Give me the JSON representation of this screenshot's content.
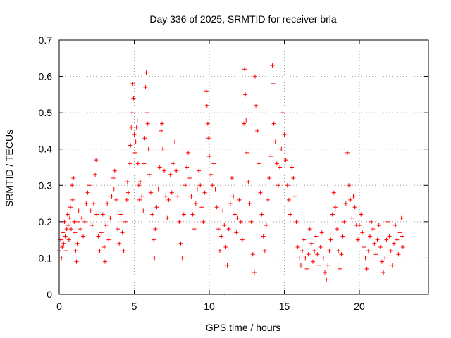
{
  "chart_data": {
    "type": "scatter",
    "title": "Day 336 of 2025, SRMTID for receiver brla",
    "xlabel": "GPS time / hours",
    "ylabel": "SRMTID / TECUs",
    "xlim": [
      0,
      24.6
    ],
    "ylim": [
      0,
      0.7
    ],
    "xticks": [
      0,
      5,
      10,
      15,
      20
    ],
    "xtick_labels": [
      "0",
      "5",
      "10",
      "15",
      "20"
    ],
    "yticks": [
      0,
      0.1,
      0.2,
      0.3,
      0.4,
      0.5,
      0.6,
      0.7
    ],
    "ytick_labels": [
      "0",
      "0.1",
      "0.2",
      "0.3",
      "0.4",
      "0.5",
      "0.6",
      "0.7"
    ],
    "grid": true,
    "marker": "plus",
    "series": [
      {
        "name": "SRMTID",
        "color": "#ff0000",
        "points": [
          [
            0.0,
            0.12
          ],
          [
            0.1,
            0.15
          ],
          [
            0.15,
            0.1
          ],
          [
            0.2,
            0.13
          ],
          [
            0.25,
            0.17
          ],
          [
            0.3,
            0.14
          ],
          [
            0.35,
            0.2
          ],
          [
            0.4,
            0.16
          ],
          [
            0.45,
            0.12
          ],
          [
            0.5,
            0.18
          ],
          [
            0.55,
            0.22
          ],
          [
            0.6,
            0.19
          ],
          [
            0.65,
            0.15
          ],
          [
            0.7,
            0.21
          ],
          [
            0.75,
            0.24
          ],
          [
            0.8,
            0.18
          ],
          [
            0.85,
            0.3
          ],
          [
            0.9,
            0.26
          ],
          [
            0.95,
            0.32
          ],
          [
            1.0,
            0.2
          ],
          [
            1.05,
            0.17
          ],
          [
            1.1,
            0.12
          ],
          [
            1.15,
            0.09
          ],
          [
            1.2,
            0.14
          ],
          [
            1.25,
            0.2
          ],
          [
            1.3,
            0.23
          ],
          [
            1.4,
            0.18
          ],
          [
            1.5,
            0.21
          ],
          [
            1.6,
            0.16
          ],
          [
            1.7,
            0.2
          ],
          [
            1.8,
            0.25
          ],
          [
            1.9,
            0.28
          ],
          [
            2.0,
            0.3
          ],
          [
            2.1,
            0.23
          ],
          [
            2.2,
            0.19
          ],
          [
            2.3,
            0.25
          ],
          [
            2.4,
            0.33
          ],
          [
            2.45,
            0.37
          ],
          [
            2.5,
            0.22
          ],
          [
            2.6,
            0.16
          ],
          [
            2.7,
            0.12
          ],
          [
            2.8,
            0.17
          ],
          [
            2.9,
            0.22
          ],
          [
            3.0,
            0.13
          ],
          [
            3.05,
            0.09
          ],
          [
            3.1,
            0.19
          ],
          [
            3.2,
            0.25
          ],
          [
            3.3,
            0.15
          ],
          [
            3.4,
            0.21
          ],
          [
            3.5,
            0.27
          ],
          [
            3.6,
            0.32
          ],
          [
            3.65,
            0.29
          ],
          [
            3.7,
            0.34
          ],
          [
            3.8,
            0.26
          ],
          [
            3.9,
            0.18
          ],
          [
            4.0,
            0.14
          ],
          [
            4.1,
            0.22
          ],
          [
            4.2,
            0.17
          ],
          [
            4.3,
            0.12
          ],
          [
            4.4,
            0.2
          ],
          [
            4.5,
            0.26
          ],
          [
            4.55,
            0.31
          ],
          [
            4.6,
            0.28
          ],
          [
            4.7,
            0.36
          ],
          [
            4.75,
            0.41
          ],
          [
            4.8,
            0.46
          ],
          [
            4.85,
            0.5
          ],
          [
            4.9,
            0.58
          ],
          [
            4.95,
            0.54
          ],
          [
            5.0,
            0.44
          ],
          [
            5.05,
            0.39
          ],
          [
            5.1,
            0.42
          ],
          [
            5.15,
            0.46
          ],
          [
            5.2,
            0.48
          ],
          [
            5.25,
            0.36
          ],
          [
            5.3,
            0.3
          ],
          [
            5.35,
            0.26
          ],
          [
            5.4,
            0.31
          ],
          [
            5.5,
            0.27
          ],
          [
            5.6,
            0.23
          ],
          [
            5.65,
            0.36
          ],
          [
            5.7,
            0.43
          ],
          [
            5.75,
            0.57
          ],
          [
            5.8,
            0.61
          ],
          [
            5.85,
            0.5
          ],
          [
            5.9,
            0.47
          ],
          [
            5.95,
            0.4
          ],
          [
            6.0,
            0.33
          ],
          [
            6.1,
            0.28
          ],
          [
            6.2,
            0.22
          ],
          [
            6.3,
            0.15
          ],
          [
            6.35,
            0.1
          ],
          [
            6.4,
            0.18
          ],
          [
            6.5,
            0.24
          ],
          [
            6.6,
            0.29
          ],
          [
            6.7,
            0.35
          ],
          [
            6.8,
            0.45
          ],
          [
            6.85,
            0.47
          ],
          [
            6.9,
            0.4
          ],
          [
            7.0,
            0.34
          ],
          [
            7.1,
            0.27
          ],
          [
            7.2,
            0.21
          ],
          [
            7.3,
            0.26
          ],
          [
            7.4,
            0.33
          ],
          [
            7.5,
            0.28
          ],
          [
            7.6,
            0.36
          ],
          [
            7.7,
            0.42
          ],
          [
            7.8,
            0.34
          ],
          [
            7.9,
            0.27
          ],
          [
            8.0,
            0.2
          ],
          [
            8.1,
            0.14
          ],
          [
            8.2,
            0.1
          ],
          [
            8.3,
            0.22
          ],
          [
            8.4,
            0.3
          ],
          [
            8.5,
            0.35
          ],
          [
            8.6,
            0.39
          ],
          [
            8.7,
            0.32
          ],
          [
            8.8,
            0.27
          ],
          [
            8.9,
            0.22
          ],
          [
            9.0,
            0.18
          ],
          [
            9.1,
            0.25
          ],
          [
            9.2,
            0.29
          ],
          [
            9.3,
            0.34
          ],
          [
            9.4,
            0.3
          ],
          [
            9.5,
            0.24
          ],
          [
            9.6,
            0.2
          ],
          [
            9.7,
            0.28
          ],
          [
            9.8,
            0.56
          ],
          [
            9.85,
            0.52
          ],
          [
            9.9,
            0.47
          ],
          [
            9.95,
            0.43
          ],
          [
            10.0,
            0.38
          ],
          [
            10.1,
            0.33
          ],
          [
            10.2,
            0.3
          ],
          [
            10.3,
            0.36
          ],
          [
            10.4,
            0.29
          ],
          [
            10.5,
            0.24
          ],
          [
            10.6,
            0.18
          ],
          [
            10.7,
            0.12
          ],
          [
            10.8,
            0.16
          ],
          [
            10.9,
            0.23
          ],
          [
            11.0,
            0.19
          ],
          [
            11.05,
            0.0
          ],
          [
            11.1,
            0.13
          ],
          [
            11.2,
            0.08
          ],
          [
            11.3,
            0.18
          ],
          [
            11.4,
            0.25
          ],
          [
            11.5,
            0.32
          ],
          [
            11.6,
            0.27
          ],
          [
            11.7,
            0.22
          ],
          [
            11.8,
            0.17
          ],
          [
            11.9,
            0.21
          ],
          [
            12.0,
            0.26
          ],
          [
            12.1,
            0.2
          ],
          [
            12.2,
            0.15
          ],
          [
            12.3,
            0.47
          ],
          [
            12.35,
            0.62
          ],
          [
            12.4,
            0.55
          ],
          [
            12.45,
            0.48
          ],
          [
            12.5,
            0.39
          ],
          [
            12.6,
            0.31
          ],
          [
            12.7,
            0.25
          ],
          [
            12.8,
            0.2
          ],
          [
            12.9,
            0.11
          ],
          [
            13.0,
            0.06
          ],
          [
            13.05,
            0.6
          ],
          [
            13.1,
            0.52
          ],
          [
            13.2,
            0.45
          ],
          [
            13.3,
            0.36
          ],
          [
            13.4,
            0.28
          ],
          [
            13.5,
            0.22
          ],
          [
            13.6,
            0.16
          ],
          [
            13.7,
            0.12
          ],
          [
            13.8,
            0.19
          ],
          [
            13.9,
            0.26
          ],
          [
            14.0,
            0.32
          ],
          [
            14.1,
            0.38
          ],
          [
            14.2,
            0.63
          ],
          [
            14.25,
            0.58
          ],
          [
            14.3,
            0.47
          ],
          [
            14.4,
            0.42
          ],
          [
            14.5,
            0.36
          ],
          [
            14.6,
            0.3
          ],
          [
            14.7,
            0.35
          ],
          [
            14.8,
            0.4
          ],
          [
            14.9,
            0.5
          ],
          [
            15.0,
            0.44
          ],
          [
            15.1,
            0.37
          ],
          [
            15.2,
            0.3
          ],
          [
            15.3,
            0.26
          ],
          [
            15.4,
            0.22
          ],
          [
            15.5,
            0.35
          ],
          [
            15.6,
            0.32
          ],
          [
            15.7,
            0.27
          ],
          [
            15.8,
            0.2
          ],
          [
            15.9,
            0.13
          ],
          [
            16.0,
            0.1
          ],
          [
            16.1,
            0.08
          ],
          [
            16.2,
            0.12
          ],
          [
            16.3,
            0.15
          ],
          [
            16.4,
            0.1
          ],
          [
            16.5,
            0.07
          ],
          [
            16.6,
            0.11
          ],
          [
            16.7,
            0.18
          ],
          [
            16.8,
            0.14
          ],
          [
            16.9,
            0.09
          ],
          [
            17.0,
            0.12
          ],
          [
            17.1,
            0.16
          ],
          [
            17.2,
            0.11
          ],
          [
            17.3,
            0.08
          ],
          [
            17.4,
            0.13
          ],
          [
            17.5,
            0.17
          ],
          [
            17.6,
            0.1
          ],
          [
            17.7,
            0.06
          ],
          [
            17.8,
            0.04
          ],
          [
            17.9,
            0.08
          ],
          [
            18.0,
            0.12
          ],
          [
            18.1,
            0.15
          ],
          [
            18.2,
            0.22
          ],
          [
            18.3,
            0.28
          ],
          [
            18.4,
            0.24
          ],
          [
            18.5,
            0.18
          ],
          [
            18.6,
            0.12
          ],
          [
            18.7,
            0.07
          ],
          [
            18.8,
            0.11
          ],
          [
            18.9,
            0.16
          ],
          [
            19.0,
            0.2
          ],
          [
            19.1,
            0.25
          ],
          [
            19.2,
            0.39
          ],
          [
            19.3,
            0.3
          ],
          [
            19.4,
            0.26
          ],
          [
            19.5,
            0.21
          ],
          [
            19.6,
            0.27
          ],
          [
            19.7,
            0.24
          ],
          [
            19.8,
            0.19
          ],
          [
            19.9,
            0.15
          ],
          [
            20.0,
            0.19
          ],
          [
            20.1,
            0.22
          ],
          [
            20.2,
            0.17
          ],
          [
            20.3,
            0.13
          ],
          [
            20.4,
            0.1
          ],
          [
            20.5,
            0.07
          ],
          [
            20.6,
            0.12
          ],
          [
            20.7,
            0.16
          ],
          [
            20.8,
            0.2
          ],
          [
            20.9,
            0.18
          ],
          [
            21.0,
            0.14
          ],
          [
            21.1,
            0.11
          ],
          [
            21.2,
            0.15
          ],
          [
            21.3,
            0.19
          ],
          [
            21.4,
            0.13
          ],
          [
            21.5,
            0.09
          ],
          [
            21.6,
            0.06
          ],
          [
            21.7,
            0.1
          ],
          [
            21.8,
            0.15
          ],
          [
            21.9,
            0.2
          ],
          [
            22.0,
            0.16
          ],
          [
            22.1,
            0.12
          ],
          [
            22.2,
            0.08
          ],
          [
            22.3,
            0.14
          ],
          [
            22.4,
            0.19
          ],
          [
            22.5,
            0.15
          ],
          [
            22.6,
            0.11
          ],
          [
            22.7,
            0.17
          ],
          [
            22.8,
            0.21
          ],
          [
            22.85,
            0.16
          ],
          [
            22.9,
            0.13
          ]
        ]
      }
    ]
  }
}
